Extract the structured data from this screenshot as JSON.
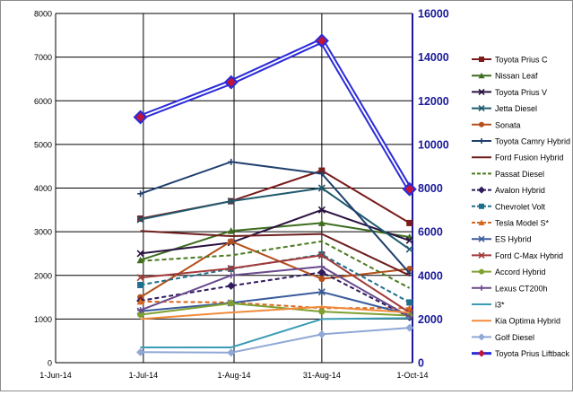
{
  "chart_data": {
    "type": "line",
    "title": "",
    "xlabel": "",
    "ylabel": "",
    "x": [
      "2014-06-30",
      "2014-07-31",
      "2014-08-31",
      "2014-09-30"
    ],
    "xlim": [
      "2014-06-01",
      "2014-10-01"
    ],
    "x_ticks": [
      "1-Jun-14",
      "1-Jul-14",
      "1-Aug-14",
      "31-Aug-14",
      "1-Oct-14"
    ],
    "x_tick_dates": [
      "2014-06-01",
      "2014-07-01",
      "2014-08-01",
      "2014-08-31",
      "2014-10-01"
    ],
    "ylim": [
      0,
      8000
    ],
    "y_ticks": [
      "0",
      "1000",
      "2000",
      "3000",
      "4000",
      "5000",
      "6000",
      "7000",
      "8000"
    ],
    "y2lim": [
      0,
      16000
    ],
    "y2_ticks": [
      "0",
      "2000",
      "4000",
      "6000",
      "8000",
      "10000",
      "12000",
      "14000",
      "16000"
    ],
    "grid": true,
    "legend": "right",
    "series": [
      {
        "name": "Toyota Prius C",
        "color": "#7b1c1c",
        "marker": "square",
        "dash": false,
        "values": [
          3300,
          3700,
          4400,
          3200
        ]
      },
      {
        "name": "Nissan Leaf",
        "color": "#3f6e1f",
        "marker": "triangle",
        "dash": false,
        "values": [
          2350,
          3020,
          3200,
          2880
        ]
      },
      {
        "name": "Toyota Prius V",
        "color": "#2a1240",
        "marker": "x",
        "dash": false,
        "values": [
          2500,
          2750,
          3500,
          2800
        ]
      },
      {
        "name": "Jetta Diesel",
        "color": "#1f5a6e",
        "marker": "x",
        "dash": false,
        "values": [
          3280,
          3700,
          4000,
          2600
        ]
      },
      {
        "name": "Sonata",
        "color": "#b5501c",
        "marker": "circle",
        "dash": false,
        "values": [
          1500,
          2780,
          1920,
          2150
        ]
      },
      {
        "name": "Toyota Camry Hybrid",
        "color": "#1f3f6e",
        "marker": "plus",
        "dash": false,
        "values": [
          3870,
          4600,
          4330,
          2050
        ]
      },
      {
        "name": "Ford Fusion Hybrid",
        "color": "#6e1f1f",
        "marker": "none",
        "dash": false,
        "values": [
          3020,
          2900,
          2950,
          2000
        ]
      },
      {
        "name": "Passat Diesel",
        "color": "#4a7a1f",
        "marker": "none",
        "dash": true,
        "values": [
          2330,
          2460,
          2780,
          1710
        ]
      },
      {
        "name": "Avalon Hybrid",
        "color": "#2f1a5e",
        "marker": "diamond",
        "dash": true,
        "values": [
          1420,
          1760,
          2070,
          1040
        ]
      },
      {
        "name": "Chevrolet Volt",
        "color": "#1f6e8c",
        "marker": "square",
        "dash": true,
        "values": [
          1780,
          2150,
          2480,
          1380
        ]
      },
      {
        "name": "Tesla Model S*",
        "color": "#d9681f",
        "marker": "triangle",
        "dash": true,
        "values": [
          1400,
          1380,
          1250,
          1250
        ]
      },
      {
        "name": "ES Hybrid",
        "color": "#3a5c9c",
        "marker": "x",
        "dash": false,
        "values": [
          1180,
          1370,
          1620,
          1100
        ]
      },
      {
        "name": "Ford C-Max Hybrid",
        "color": "#a33a3a",
        "marker": "x",
        "dash": false,
        "values": [
          1950,
          2160,
          2460,
          1150
        ]
      },
      {
        "name": "Accord Hybrid",
        "color": "#7fa030",
        "marker": "circle",
        "dash": false,
        "values": [
          1100,
          1360,
          1170,
          1080
        ]
      },
      {
        "name": "Lexus CT200h",
        "color": "#6a4a8c",
        "marker": "plus",
        "dash": false,
        "values": [
          1200,
          2000,
          2200,
          1050
        ]
      },
      {
        "name": "i3*",
        "color": "#3a9cb5",
        "marker": "none",
        "dash": false,
        "values": [
          350,
          350,
          1000,
          1020
        ]
      },
      {
        "name": "Kia Optima Hybrid",
        "color": "#f08a3a",
        "marker": "none",
        "dash": false,
        "values": [
          1000,
          1150,
          1280,
          1150
        ]
      },
      {
        "name": "Golf Diesel",
        "color": "#8fa8d6",
        "marker": "diamond",
        "dash": false,
        "values": [
          240,
          230,
          650,
          800
        ]
      },
      {
        "name": "Toyota Prius Liftback",
        "color": "#2b2bd9",
        "marker": "diamond",
        "dash": false,
        "axis": "right",
        "values": [
          11250,
          12850,
          14750,
          7950
        ]
      }
    ]
  }
}
